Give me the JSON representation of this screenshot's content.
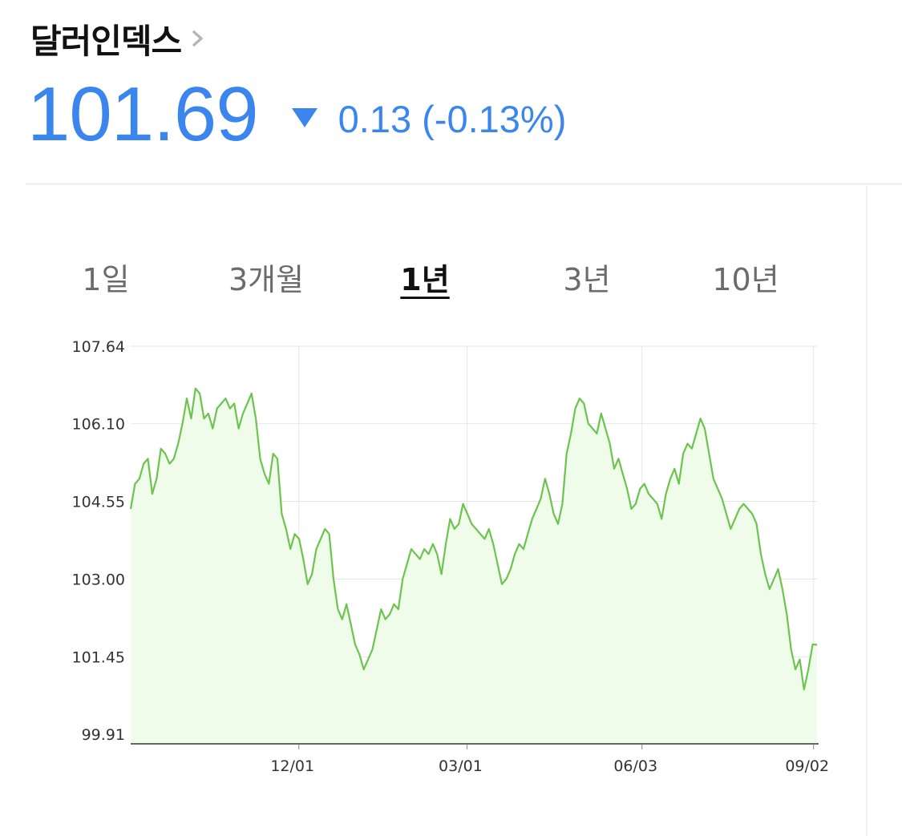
{
  "header": {
    "title": "달러인덱스",
    "title_chevron_icon": "chevron-right-icon"
  },
  "quote": {
    "price": "101.69",
    "direction_icon": "triangle-down-icon",
    "change": "0.13 (-0.13%)",
    "color": "#3a86ee"
  },
  "tabs": [
    {
      "label": "1일",
      "active": false
    },
    {
      "label": "3개월",
      "active": false
    },
    {
      "label": "1년",
      "active": true
    },
    {
      "label": "3년",
      "active": false
    },
    {
      "label": "10년",
      "active": false
    }
  ],
  "chart_data": {
    "type": "area",
    "title": "",
    "xlabel": "",
    "ylabel": "",
    "ylim": [
      99.91,
      107.64
    ],
    "yticks": [
      "107.64",
      "106.10",
      "104.55",
      "103.00",
      "101.45",
      "99.91"
    ],
    "xticks": [
      "12/01",
      "03/01",
      "06/03",
      "09/02"
    ],
    "line_color": "#6cc44f",
    "fill_color": "#effcea",
    "grid": true,
    "series": [
      {
        "values": [
          104.4,
          104.9,
          105.0,
          105.3,
          105.4,
          104.7,
          105.0,
          105.6,
          105.5,
          105.3,
          105.4,
          105.7,
          106.1,
          106.6,
          106.2,
          106.8,
          106.7,
          106.2,
          106.3,
          106.0,
          106.4,
          106.5,
          106.6,
          106.4,
          106.5,
          106.0,
          106.3,
          106.5,
          106.7,
          106.2,
          105.4,
          105.1,
          104.9,
          105.5,
          105.4,
          104.3,
          104.0,
          103.6,
          103.9,
          103.8,
          103.4,
          102.9,
          103.1,
          103.6,
          103.8,
          104.0,
          103.9,
          103.0,
          102.4,
          102.2,
          102.5,
          102.1,
          101.7,
          101.5,
          101.2,
          101.4,
          101.6,
          102.0,
          102.4,
          102.2,
          102.3,
          102.5,
          102.4,
          103.0,
          103.3,
          103.6,
          103.5,
          103.4,
          103.6,
          103.5,
          103.7,
          103.5,
          103.1,
          103.7,
          104.2,
          104.0,
          104.1,
          104.5,
          104.3,
          104.1,
          104.0,
          103.9,
          103.8,
          104.0,
          103.7,
          103.3,
          102.9,
          103.0,
          103.2,
          103.5,
          103.7,
          103.6,
          103.9,
          104.2,
          104.4,
          104.6,
          105.0,
          104.7,
          104.3,
          104.1,
          104.5,
          105.5,
          105.9,
          106.4,
          106.6,
          106.5,
          106.1,
          106.0,
          105.9,
          106.3,
          106.0,
          105.7,
          105.2,
          105.4,
          105.1,
          104.8,
          104.4,
          104.5,
          104.8,
          104.9,
          104.7,
          104.6,
          104.5,
          104.2,
          104.7,
          105.0,
          105.2,
          104.9,
          105.5,
          105.7,
          105.6,
          105.9,
          106.2,
          106.0,
          105.5,
          105.0,
          104.8,
          104.6,
          104.3,
          104.0,
          104.2,
          104.4,
          104.5,
          104.4,
          104.3,
          104.1,
          103.5,
          103.1,
          102.8,
          103.0,
          103.2,
          102.8,
          102.3,
          101.6,
          101.2,
          101.4,
          100.8,
          101.2,
          101.7,
          101.69
        ]
      }
    ]
  }
}
